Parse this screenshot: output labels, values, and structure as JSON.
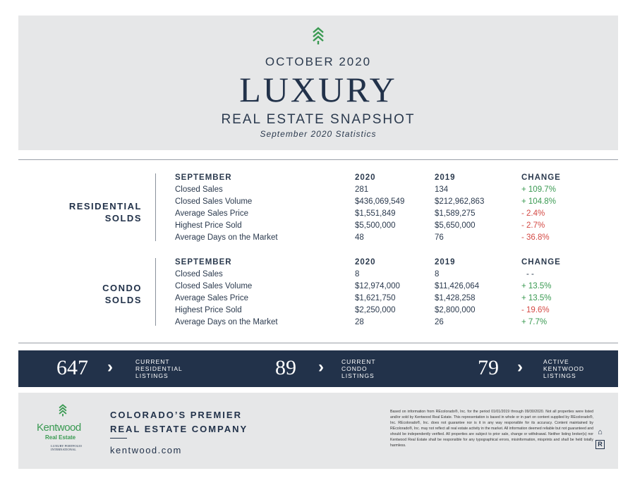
{
  "header": {
    "month": "OCTOBER 2020",
    "title": "LUXURY",
    "subtitle": "REAL ESTATE SNAPSHOT",
    "stats_line": "September 2020 Statistics"
  },
  "colors": {
    "navy": "#22324a",
    "gray_panel": "#e6e7e8",
    "green": "#3a9a52",
    "red": "#d44a45"
  },
  "residential": {
    "label_line1": "RESIDENTIAL",
    "label_line2": "SOLDS",
    "header": [
      "SEPTEMBER",
      "2020",
      "2019",
      "CHANGE"
    ],
    "rows": [
      {
        "metric": "Closed Sales",
        "y2020": "281",
        "y2019": "134",
        "change": "+ 109.7%",
        "dir": "up"
      },
      {
        "metric": "Closed Sales Volume",
        "y2020": "$436,069,549",
        "y2019": "$212,962,863",
        "change": "+ 104.8%",
        "dir": "up"
      },
      {
        "metric": "Average Sales Price",
        "y2020": "$1,551,849",
        "y2019": "$1,589,275",
        "change": "- 2.4%",
        "dir": "down"
      },
      {
        "metric": "Highest Price Sold",
        "y2020": "$5,500,000",
        "y2019": "$5,650,000",
        "change": "- 2.7%",
        "dir": "down"
      },
      {
        "metric": "Average Days on the Market",
        "y2020": "48",
        "y2019": "76",
        "change": "- 36.8%",
        "dir": "down"
      }
    ]
  },
  "condo": {
    "label_line1": "CONDO",
    "label_line2": "SOLDS",
    "header": [
      "SEPTEMBER",
      "2020",
      "2019",
      "CHANGE"
    ],
    "rows": [
      {
        "metric": "Closed Sales",
        "y2020": "8",
        "y2019": "8",
        "change": "- -",
        "dir": "none"
      },
      {
        "metric": "Closed Sales Volume",
        "y2020": "$12,974,000",
        "y2019": "$11,426,064",
        "change": "+ 13.5%",
        "dir": "up"
      },
      {
        "metric": "Average Sales Price",
        "y2020": "$1,621,750",
        "y2019": "$1,428,258",
        "change": "+ 13.5%",
        "dir": "up"
      },
      {
        "metric": "Highest Price Sold",
        "y2020": "$2,250,000",
        "y2019": "$2,800,000",
        "change": "- 19.6%",
        "dir": "down"
      },
      {
        "metric": "Average Days on the Market",
        "y2020": "28",
        "y2019": "26",
        "change": "+ 7.7%",
        "dir": "up"
      }
    ]
  },
  "banner": [
    {
      "value": "647",
      "l1": "CURRENT",
      "l2": "RESIDENTIAL",
      "l3": "LISTINGS"
    },
    {
      "value": "89",
      "l1": "CURRENT",
      "l2": "CONDO",
      "l3": "LISTINGS"
    },
    {
      "value": "79",
      "l1": "ACTIVE",
      "l2": "KENTWOOD",
      "l3": "LISTINGS"
    }
  ],
  "footer": {
    "brand": "Kentwood",
    "brand_sub": "Real Estate",
    "lpi": "LUXURY PORTFOLIO INTERNATIONAL",
    "tag1": "COLORADO’S PREMIER",
    "tag2": "REAL ESTATE COMPANY",
    "site": "kentwood.com",
    "disclaimer": "Based on information from REcolorado®, Inc. for the period 01/01/2019 through 09/30/2020. Not all properties were listed and/or sold by Kentwood Real Estate. This representation is based in whole or in part on content supplied by REcolorado®, Inc. REcolorado®, Inc. does not guarantee nor is it in any way responsible for its accuracy. Content maintained by REcolorado®, Inc. may not reflect all real estate activity in the market. All information deemed reliable but not guaranteed and should be independently verified. All properties are subject to prior sale, change or withdrawal. Neither listing broker(s) nor Kentwood Real Estate shall be responsible for any typographical errors, misinformation, misprints and shall be held totally harmless."
  }
}
